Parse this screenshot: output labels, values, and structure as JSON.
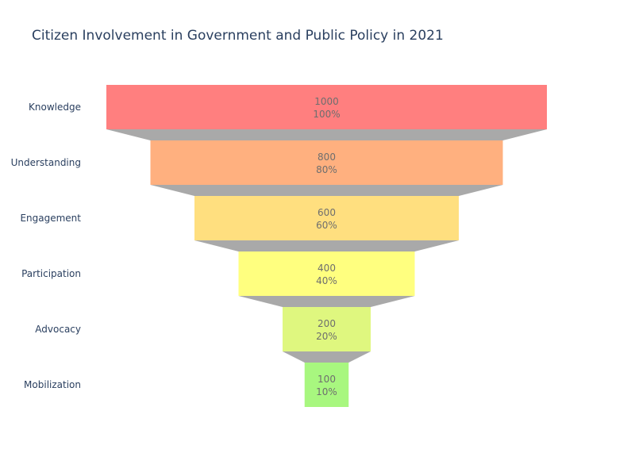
{
  "chart_data": {
    "type": "funnel",
    "title": "Citizen Involvement in Government and Public Policy in 2021",
    "categories": [
      "Knowledge",
      "Understanding",
      "Engagement",
      "Participation",
      "Advocacy",
      "Mobilization"
    ],
    "values": [
      1000,
      800,
      600,
      400,
      200,
      100
    ],
    "percent_labels": [
      "100%",
      "80%",
      "60%",
      "40%",
      "20%",
      "10%"
    ],
    "colors": [
      "#ff7f7f",
      "#ffb07f",
      "#ffdf7f",
      "#ffff7f",
      "#dff77f",
      "#a8f77f"
    ],
    "connector_color": "#a9a9a9",
    "text_color": "#2a3f5f"
  }
}
